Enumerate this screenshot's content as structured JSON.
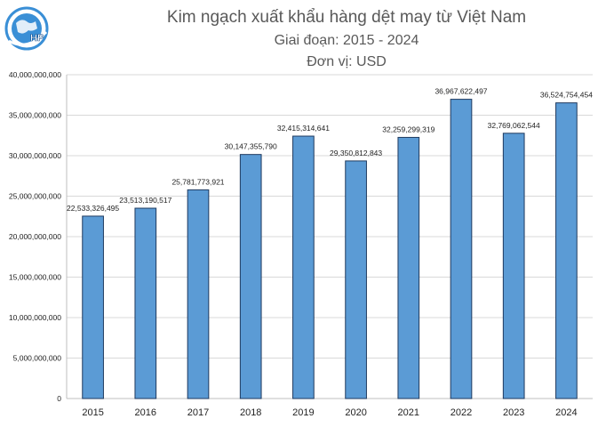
{
  "logo": {
    "text": "HP",
    "icon": "globe-logo-icon",
    "color": "#3a8fd6"
  },
  "chart_data": {
    "type": "bar",
    "title": "Kim ngạch xuất khẩu hàng dệt may từ Việt Nam",
    "subtitle": "Giai đoạn: 2015 - 2024",
    "unit": "Đơn vị: USD",
    "categories": [
      "2015",
      "2016",
      "2017",
      "2018",
      "2019",
      "2020",
      "2021",
      "2022",
      "2023",
      "2024"
    ],
    "values": [
      22533326495,
      23513190517,
      25781773921,
      30147355790,
      32415314641,
      29350812843,
      32259299319,
      36967622497,
      32769062544,
      36524754454
    ],
    "value_labels": [
      "22,533,326,495",
      "23,513,190,517",
      "25,781,773,921",
      "30,147,355,790",
      "32,415,314,641",
      "29,350,812,843",
      "32,259,299,319",
      "36,967,622,497",
      "32,769,062,544",
      "36,524,754,454"
    ],
    "yticks": [
      "0",
      "5,000,000,000",
      "10,000,000,000",
      "15,000,000,000",
      "20,000,000,000",
      "25,000,000,000",
      "30,000,000,000",
      "35,000,000,000",
      "40,000,000,000"
    ],
    "ylim": [
      0,
      40000000000
    ],
    "ytick_step": 5000000000,
    "grid": true,
    "bar_color": "#5b9bd5",
    "bar_edge_color": "#1f3a5f"
  }
}
